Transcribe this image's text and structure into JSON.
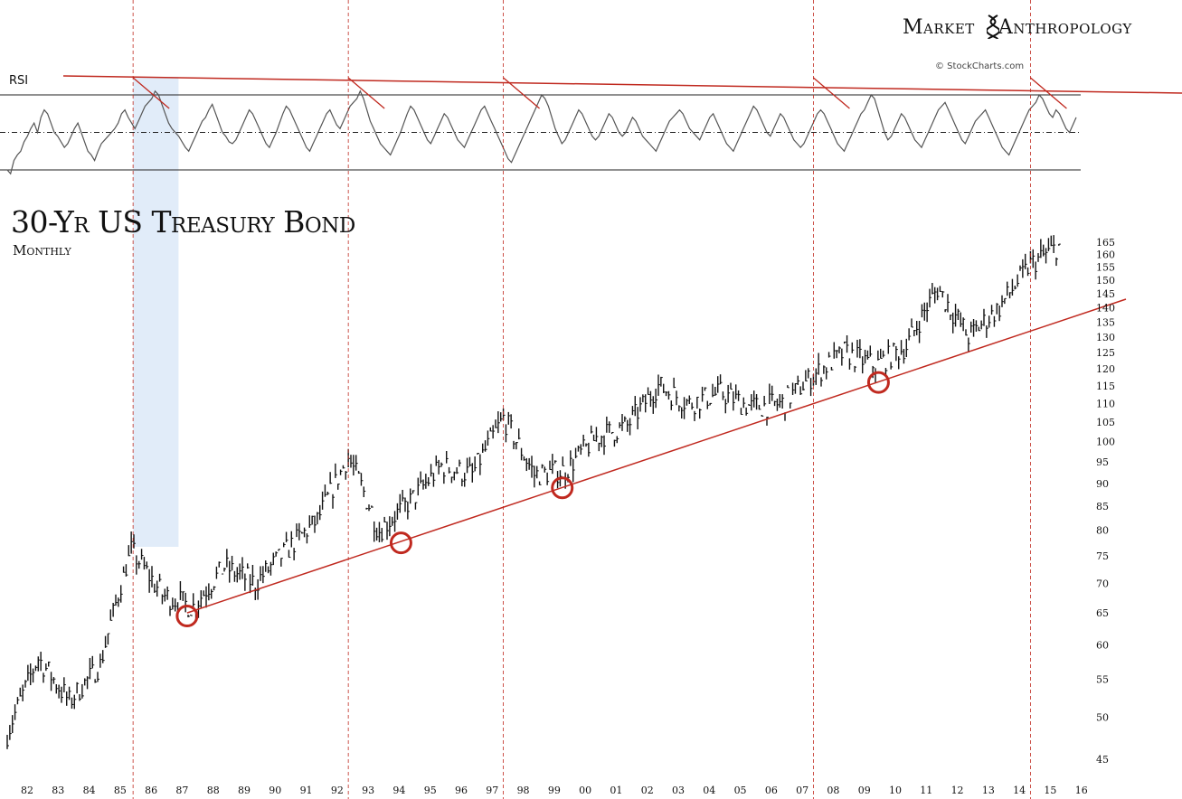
{
  "brand": {
    "left": "Market",
    "right": "Anthropology",
    "logo": "dna-helix-icon"
  },
  "credit": "© StockCharts.com",
  "colors": {
    "trend": "#c0291f",
    "marker": "#c0291f",
    "highlight": "#dce9f8",
    "price": "#111111",
    "rsi": "#555555"
  },
  "chart_data": [
    {
      "type": "line",
      "indicator": "RSI",
      "title": "",
      "series": [
        {
          "name": "RSI",
          "values": [
            30,
            28,
            35,
            38,
            40,
            45,
            48,
            52,
            55,
            50,
            58,
            62,
            60,
            55,
            50,
            48,
            45,
            42,
            44,
            48,
            52,
            55,
            50,
            45,
            40,
            38,
            35,
            40,
            44,
            46,
            48,
            50,
            52,
            55,
            60,
            62,
            58,
            55,
            52,
            56,
            60,
            64,
            66,
            68,
            72,
            70,
            65,
            60,
            55,
            52,
            50,
            48,
            45,
            42,
            40,
            44,
            48,
            52,
            56,
            58,
            62,
            65,
            60,
            55,
            50,
            48,
            45,
            44,
            46,
            50,
            54,
            58,
            62,
            60,
            56,
            52,
            48,
            44,
            42,
            46,
            50,
            55,
            60,
            64,
            62,
            58,
            54,
            50,
            46,
            42,
            40,
            44,
            48,
            52,
            56,
            60,
            62,
            58,
            54,
            52,
            56,
            60,
            64,
            66,
            68,
            72,
            68,
            62,
            56,
            52,
            48,
            44,
            42,
            40,
            38,
            42,
            46,
            50,
            55,
            60,
            64,
            62,
            58,
            54,
            50,
            46,
            44,
            48,
            52,
            56,
            60,
            58,
            54,
            50,
            46,
            44,
            42,
            46,
            50,
            54,
            58,
            62,
            64,
            60,
            56,
            52,
            48,
            44,
            40,
            36,
            34,
            38,
            42,
            46,
            50,
            54,
            58,
            62,
            66,
            70,
            68,
            64,
            58,
            52,
            48,
            44,
            46,
            50,
            54,
            58,
            62,
            60,
            56,
            52,
            48,
            46,
            48,
            52,
            56,
            60,
            58,
            54,
            50,
            48,
            50,
            54,
            58,
            56,
            52,
            48,
            46,
            44,
            42,
            40,
            44,
            48,
            52,
            56,
            58,
            60,
            62,
            60,
            56,
            52,
            50,
            48,
            46,
            50,
            54,
            58,
            60,
            56,
            52,
            48,
            44,
            42,
            40,
            44,
            48,
            52,
            56,
            60,
            64,
            62,
            58,
            54,
            50,
            48,
            52,
            56,
            60,
            58,
            54,
            50,
            46,
            44,
            42,
            44,
            48,
            52,
            56,
            60,
            62,
            60,
            56,
            52,
            48,
            44,
            42,
            40,
            44,
            48,
            52,
            56,
            60,
            62,
            66,
            70,
            68,
            62,
            56,
            50,
            46,
            48,
            52,
            56,
            60,
            58,
            54,
            50,
            46,
            44,
            42,
            46,
            50,
            54,
            58,
            62,
            64,
            66,
            62,
            58,
            54,
            50,
            46,
            44,
            48,
            52,
            56,
            58,
            60,
            62,
            58,
            54,
            50,
            46,
            42,
            40,
            38,
            42,
            46,
            50,
            54,
            58,
            62,
            64,
            66,
            70,
            68,
            64,
            60,
            58,
            62,
            60,
            56,
            52,
            50,
            54,
            58
          ]
        }
      ],
      "x_range": [
        "1982",
        "2016"
      ],
      "ylim": [
        20,
        80
      ],
      "reference_levels": [
        70,
        50,
        30
      ],
      "peaks": [
        "1986",
        "1993",
        "1998",
        "2008",
        "2015"
      ]
    },
    {
      "type": "line",
      "title": "30-Yr US Treasury Bond",
      "subtitle": "Monthly",
      "y_scale": "log",
      "y_ticks": [
        45,
        50,
        55,
        60,
        65,
        70,
        75,
        80,
        85,
        90,
        95,
        100,
        105,
        110,
        115,
        120,
        125,
        130,
        135,
        140,
        145,
        150,
        155,
        160,
        165
      ],
      "x_ticks": [
        "82",
        "83",
        "84",
        "85",
        "86",
        "87",
        "88",
        "89",
        "90",
        "91",
        "92",
        "93",
        "94",
        "95",
        "96",
        "97",
        "98",
        "99",
        "00",
        "01",
        "02",
        "03",
        "04",
        "05",
        "06",
        "07",
        "08",
        "09",
        "10",
        "11",
        "12",
        "13",
        "14",
        "15",
        "16"
      ],
      "series": [
        {
          "name": "30-Yr US Treasury Bond",
          "x": [
            "1982",
            "1983",
            "1984",
            "1985",
            "1986",
            "1987",
            "1988",
            "1989",
            "1990",
            "1991",
            "1992",
            "1993",
            "1994",
            "1995",
            "1996",
            "1997",
            "1998",
            "1999",
            "2000",
            "2001",
            "2002",
            "2003",
            "2004",
            "2005",
            "2006",
            "2007",
            "2008",
            "2009",
            "2010",
            "2011",
            "2012",
            "2013",
            "2014",
            "2015",
            "2016"
          ],
          "values": [
            48,
            58,
            52,
            57,
            76,
            68,
            66,
            73,
            70,
            76,
            82,
            96,
            80,
            86,
            94,
            92,
            106,
            92,
            93,
            101,
            104,
            115,
            110,
            113,
            109,
            110,
            118,
            125,
            121,
            127,
            147,
            130,
            140,
            156,
            164
          ]
        }
      ],
      "trendline": {
        "from": [
          "1987.8",
          65
        ],
        "to": [
          "2017",
          143
        ]
      },
      "lows_marked": [
        [
          "1987.8",
          64.5
        ],
        [
          "1994.7",
          77.5
        ],
        [
          "1999.9",
          89
        ],
        [
          "2010.1",
          116
        ]
      ],
      "highlight": [
        "1986",
        "1987"
      ],
      "marks": [
        "1986",
        "1993",
        "1998",
        "2008",
        "2015"
      ]
    }
  ]
}
